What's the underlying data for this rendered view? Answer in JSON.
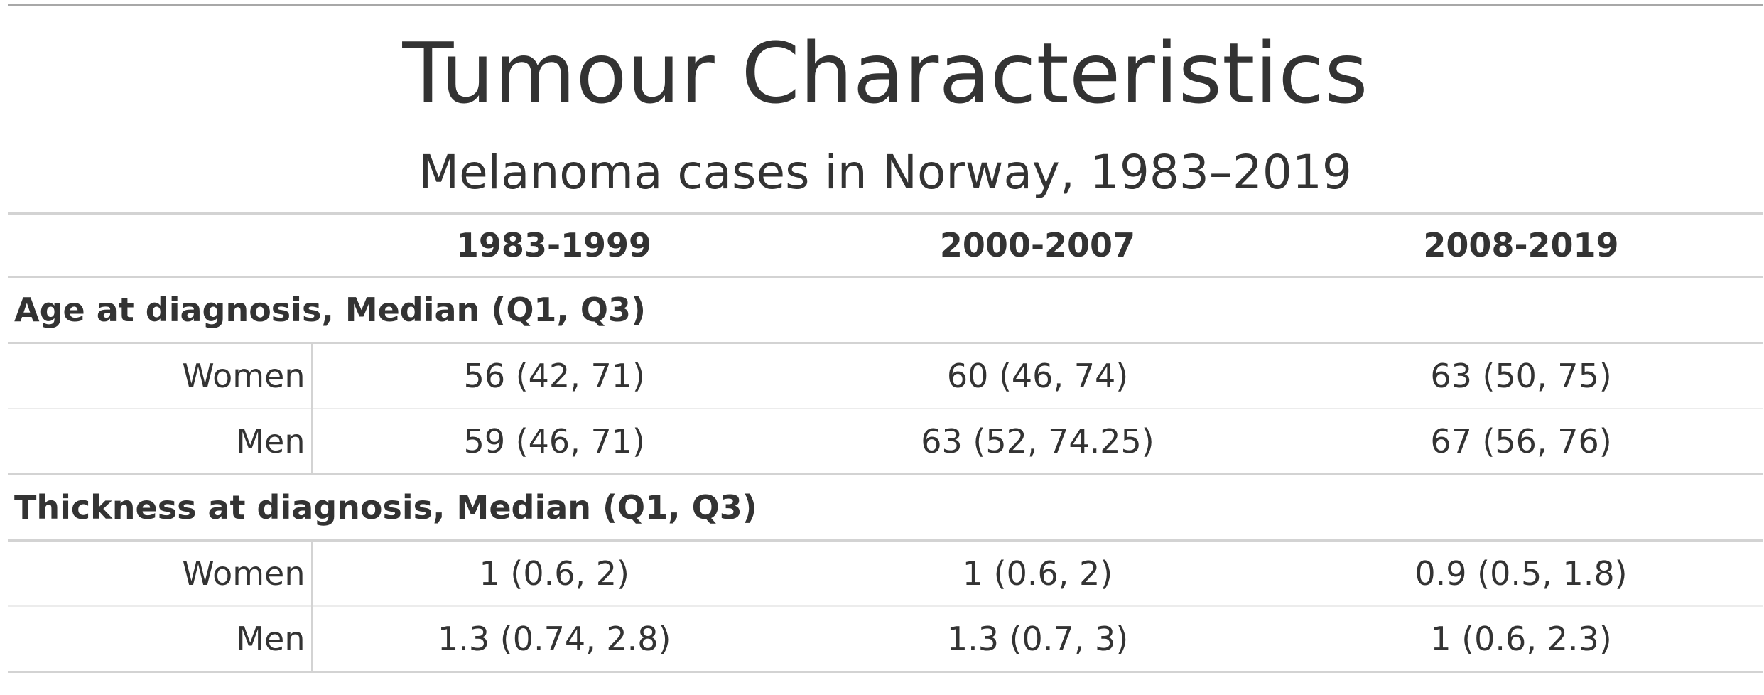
{
  "title": "Tumour Characteristics",
  "subtitle": "Melanoma cases in Norway, 1983–2019",
  "columns": [
    "",
    "1983-1999",
    "2000-2007",
    "2008-2019"
  ],
  "groups": [
    {
      "label": "Age at diagnosis, Median (Q1, Q3)",
      "rows": [
        {
          "label": "Women",
          "values": [
            "56 (42, 71)",
            "60 (46, 74)",
            "63 (50, 75)"
          ]
        },
        {
          "label": "Men",
          "values": [
            "59 (46, 71)",
            "63 (52, 74.25)",
            "67 (56, 76)"
          ]
        }
      ]
    },
    {
      "label": "Thickness at diagnosis, Median (Q1, Q3)",
      "rows": [
        {
          "label": "Women",
          "values": [
            "1 (0.6, 2)",
            "1 (0.6, 2)",
            "0.9 (0.5, 1.8)"
          ]
        },
        {
          "label": "Men",
          "values": [
            "1.3 (0.74, 2.8)",
            "1.3 (0.7, 3)",
            "1 (0.6, 2.3)"
          ]
        }
      ]
    }
  ]
}
